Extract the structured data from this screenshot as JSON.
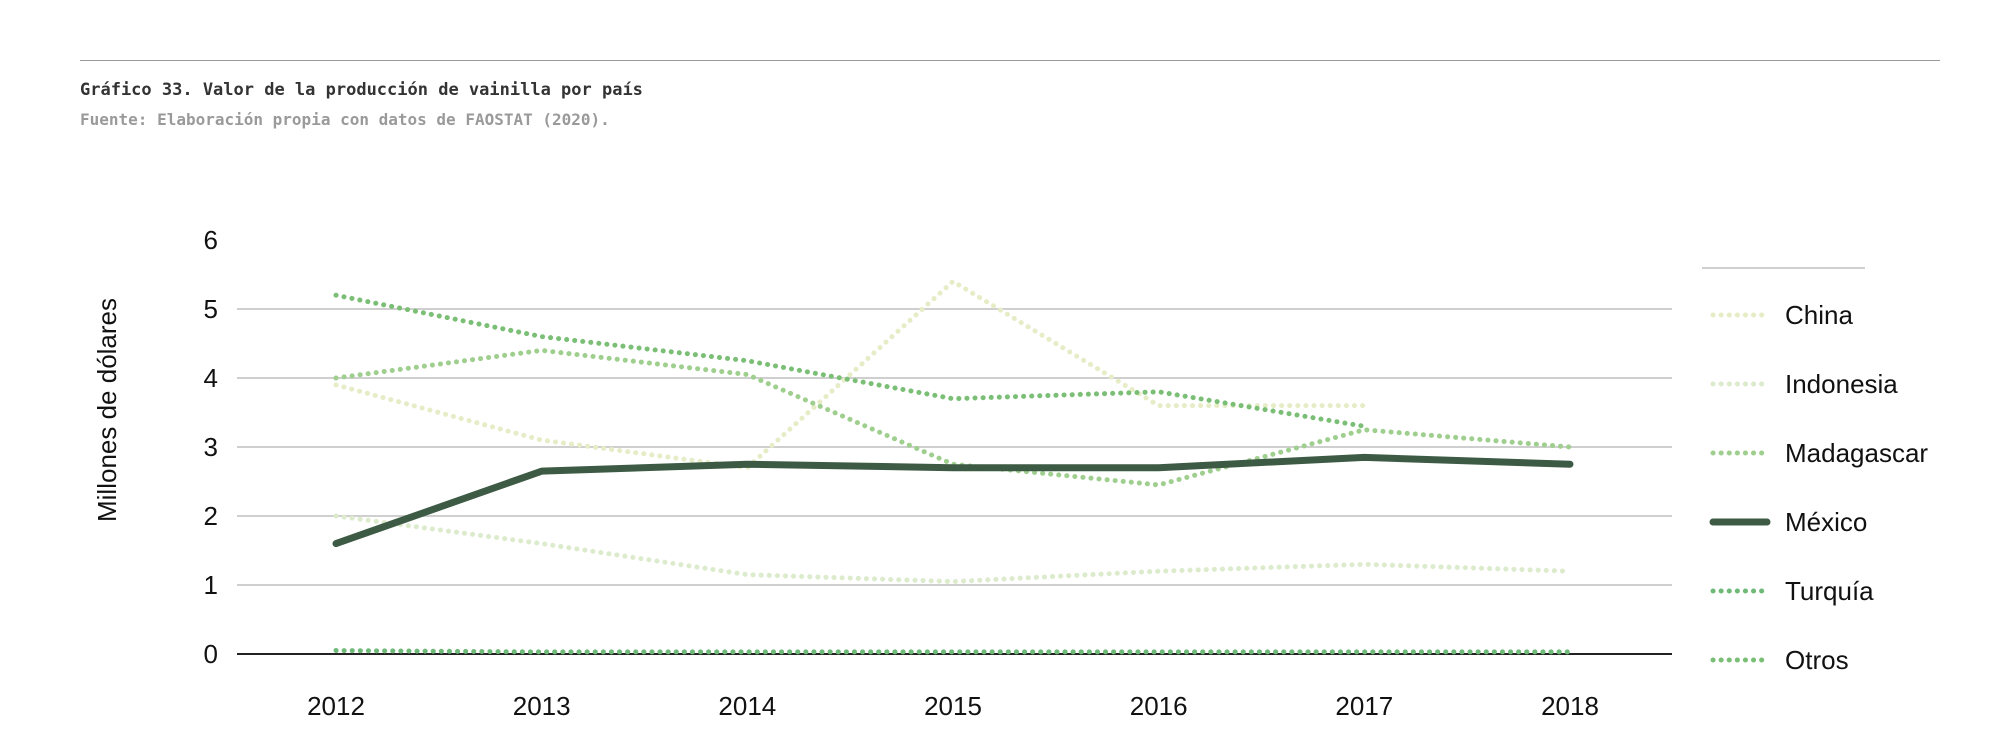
{
  "header": {
    "title": "Gráfico 33. Valor de la producción de vainilla por país",
    "source": "Fuente: Elaboración propia con datos de FAOSTAT (2020)."
  },
  "chart_data": {
    "type": "line",
    "title": "Gráfico 33. Valor de la producción de vainilla por país",
    "xlabel": "",
    "ylabel": "Millones de dólares",
    "x": [
      "2012",
      "2013",
      "2014",
      "2015",
      "2016",
      "2017",
      "2018"
    ],
    "ylim": [
      0,
      6
    ],
    "yticks": [
      0,
      1,
      2,
      3,
      4,
      5,
      6
    ],
    "grid": true,
    "legend": "right",
    "series": [
      {
        "name": "China",
        "color": "#e6ecc6",
        "dash": "dotted",
        "values": [
          3.9,
          3.1,
          2.7,
          5.4,
          3.6,
          3.6,
          null
        ]
      },
      {
        "name": "Indonesia",
        "color": "#dcebcc",
        "dash": "dotted",
        "values": [
          2.0,
          1.6,
          1.15,
          1.05,
          1.2,
          1.3,
          1.2
        ]
      },
      {
        "name": "Madagascar",
        "color": "#9fcf8e",
        "dash": "dotted",
        "values": [
          4.0,
          4.4,
          4.05,
          2.75,
          2.45,
          3.25,
          3.0
        ]
      },
      {
        "name": "México",
        "color": "#3d5a44",
        "dash": "solid",
        "values": [
          1.6,
          2.65,
          2.75,
          2.7,
          2.7,
          2.85,
          2.75
        ]
      },
      {
        "name": "Turquía",
        "color": "#6fba78",
        "dash": "dotted",
        "values": [
          0.05,
          0.03,
          0.03,
          0.03,
          0.03,
          0.03,
          0.03
        ]
      },
      {
        "name": "Otros",
        "color": "#7bbf76",
        "dash": "dotted",
        "values": [
          5.2,
          4.6,
          4.25,
          3.7,
          3.8,
          3.3,
          null
        ]
      }
    ]
  }
}
